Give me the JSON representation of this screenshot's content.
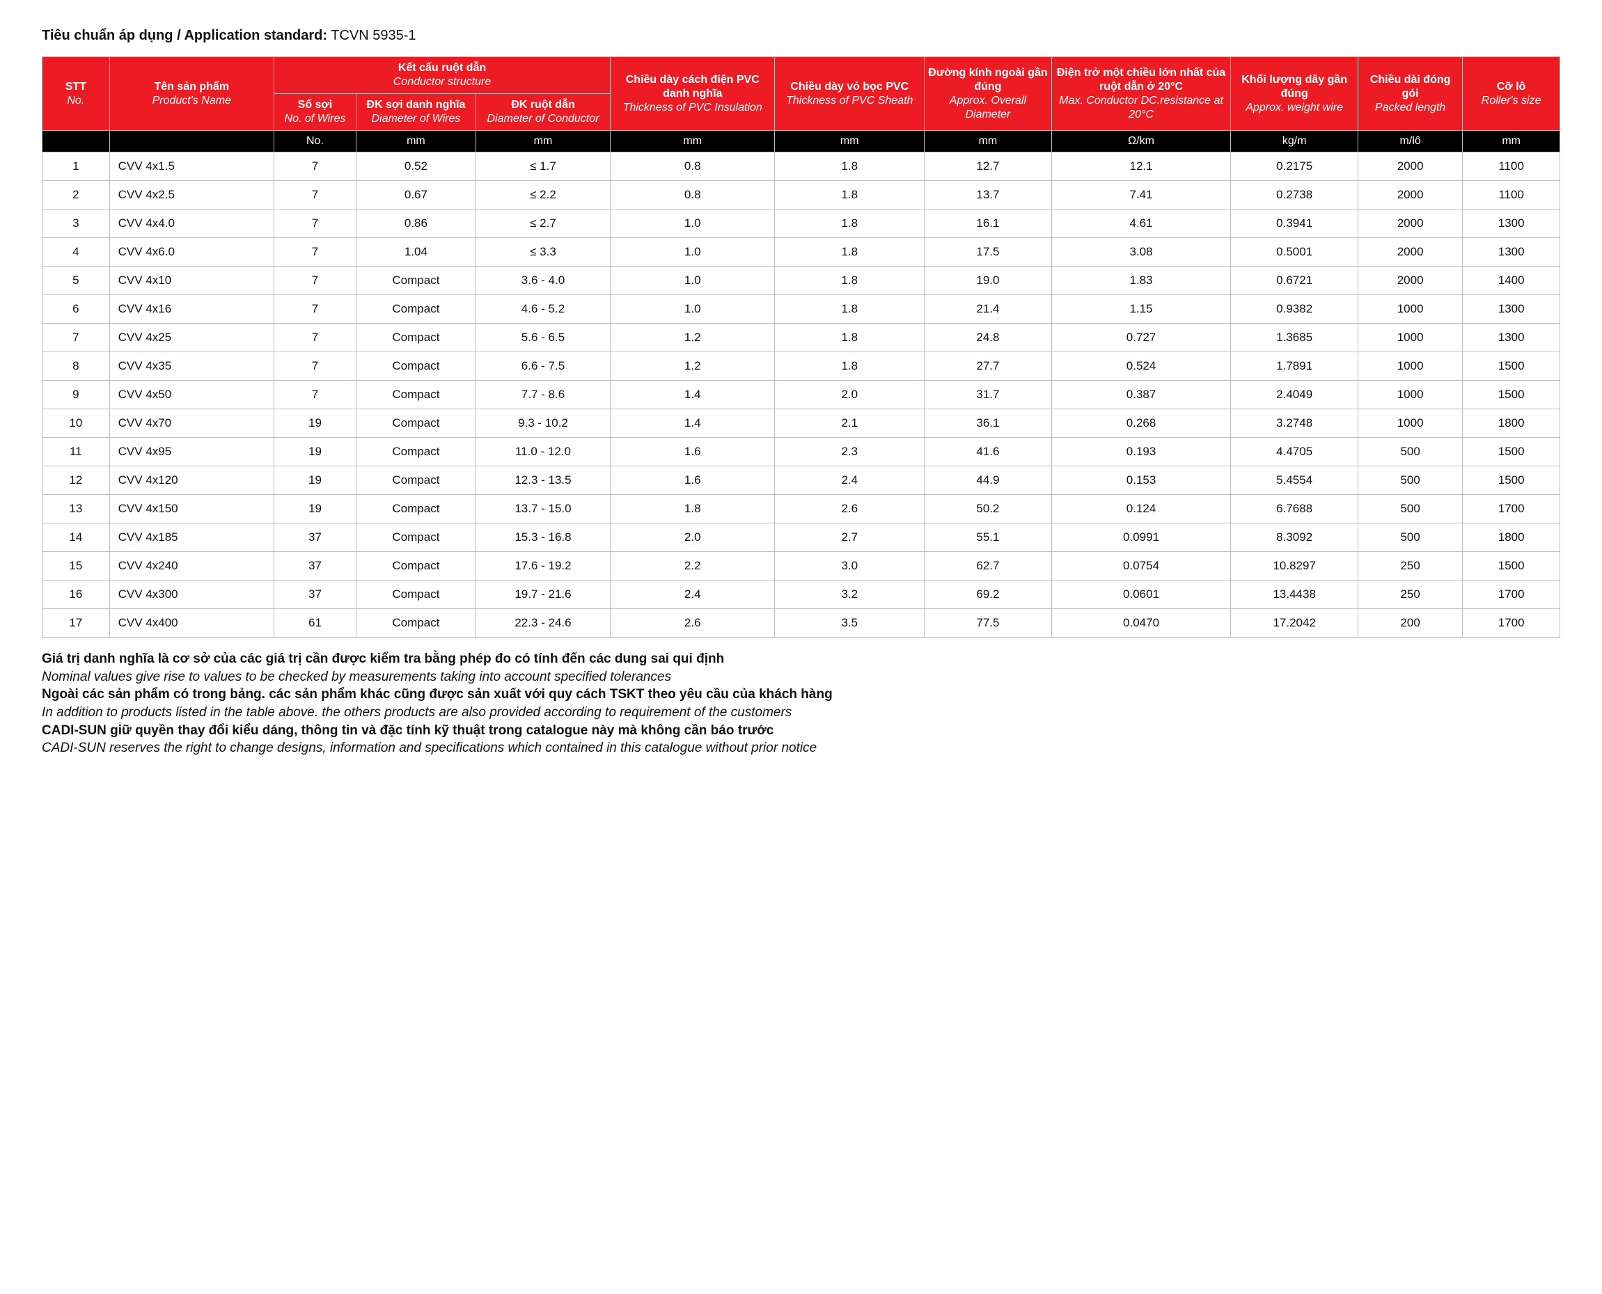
{
  "standard": {
    "label": "Tiêu chuẩn áp dụng / Application standard:",
    "value": "TCVN 5935-1"
  },
  "header": {
    "stt": {
      "vn": "STT",
      "en": "No."
    },
    "name": {
      "vn": "Tên sản phẩm",
      "en": "Product's Name"
    },
    "cond_group": {
      "vn": "Kết cấu ruột dẫn",
      "en": "Conductor structure"
    },
    "wires": {
      "vn": "Số sợi",
      "en": "No. of Wires"
    },
    "wire_dia": {
      "vn": "ĐK sợi danh nghĩa",
      "en": "Diameter of Wires"
    },
    "cond_dia": {
      "vn": "ĐK ruột dẫn",
      "en": "Diameter of Conductor"
    },
    "pvc_ins": {
      "vn": "Chiều dày cách điện PVC danh nghĩa",
      "en": "Thickness of PVC Insulation"
    },
    "sheath": {
      "vn": "Chiều dày vỏ bọc PVC",
      "en": "Thickness of PVC Sheath"
    },
    "od": {
      "vn": "Đường kính ngoài gần đúng",
      "en": "Approx. Overall Diameter"
    },
    "res": {
      "vn": "Điện trở một chiều lớn nhất của ruột dẫn ở 20°C",
      "en": "Max. Conductor DC.resistance at 20°C"
    },
    "weight": {
      "vn": "Khối lượng dây gần đúng",
      "en": "Approx. weight wire"
    },
    "length": {
      "vn": "Chiều dài đóng gói",
      "en": "Packed length"
    },
    "roller": {
      "vn": "Cỡ lô",
      "en": "Roller's size"
    }
  },
  "units": {
    "stt": "",
    "name": "",
    "wires": "No.",
    "wire_dia": "mm",
    "cond_dia": "mm",
    "pvc_ins": "mm",
    "sheath": "mm",
    "od": "mm",
    "res": "Ω/km",
    "weight": "kg/m",
    "length": "m/lô",
    "roller": "mm"
  },
  "rows": [
    {
      "no": "1",
      "name": "CVV 4x1.5",
      "wires": "7",
      "wdia": "0.52",
      "cdia": "≤ 1.7",
      "pvc": "0.8",
      "sheath": "1.8",
      "od": "12.7",
      "res": "12.1",
      "wt": "0.2175",
      "len": "2000",
      "rol": "1100"
    },
    {
      "no": "2",
      "name": "CVV 4x2.5",
      "wires": "7",
      "wdia": "0.67",
      "cdia": "≤ 2.2",
      "pvc": "0.8",
      "sheath": "1.8",
      "od": "13.7",
      "res": "7.41",
      "wt": "0.2738",
      "len": "2000",
      "rol": "1100"
    },
    {
      "no": "3",
      "name": "CVV 4x4.0",
      "wires": "7",
      "wdia": "0.86",
      "cdia": "≤ 2.7",
      "pvc": "1.0",
      "sheath": "1.8",
      "od": "16.1",
      "res": "4.61",
      "wt": "0.3941",
      "len": "2000",
      "rol": "1300"
    },
    {
      "no": "4",
      "name": "CVV 4x6.0",
      "wires": "7",
      "wdia": "1.04",
      "cdia": "≤ 3.3",
      "pvc": "1.0",
      "sheath": "1.8",
      "od": "17.5",
      "res": "3.08",
      "wt": "0.5001",
      "len": "2000",
      "rol": "1300"
    },
    {
      "no": "5",
      "name": "CVV 4x10",
      "wires": "7",
      "wdia": "Compact",
      "cdia": "3.6 - 4.0",
      "pvc": "1.0",
      "sheath": "1.8",
      "od": "19.0",
      "res": "1.83",
      "wt": "0.6721",
      "len": "2000",
      "rol": "1400"
    },
    {
      "no": "6",
      "name": "CVV 4x16",
      "wires": "7",
      "wdia": "Compact",
      "cdia": "4.6 - 5.2",
      "pvc": "1.0",
      "sheath": "1.8",
      "od": "21.4",
      "res": "1.15",
      "wt": "0.9382",
      "len": "1000",
      "rol": "1300"
    },
    {
      "no": "7",
      "name": "CVV 4x25",
      "wires": "7",
      "wdia": "Compact",
      "cdia": "5.6 - 6.5",
      "pvc": "1.2",
      "sheath": "1.8",
      "od": "24.8",
      "res": "0.727",
      "wt": "1.3685",
      "len": "1000",
      "rol": "1300"
    },
    {
      "no": "8",
      "name": "CVV 4x35",
      "wires": "7",
      "wdia": "Compact",
      "cdia": "6.6 - 7.5",
      "pvc": "1.2",
      "sheath": "1.8",
      "od": "27.7",
      "res": "0.524",
      "wt": "1.7891",
      "len": "1000",
      "rol": "1500"
    },
    {
      "no": "9",
      "name": "CVV 4x50",
      "wires": "7",
      "wdia": "Compact",
      "cdia": "7.7 - 8.6",
      "pvc": "1.4",
      "sheath": "2.0",
      "od": "31.7",
      "res": "0.387",
      "wt": "2.4049",
      "len": "1000",
      "rol": "1500"
    },
    {
      "no": "10",
      "name": "CVV 4x70",
      "wires": "19",
      "wdia": "Compact",
      "cdia": "9.3 - 10.2",
      "pvc": "1.4",
      "sheath": "2.1",
      "od": "36.1",
      "res": "0.268",
      "wt": "3.2748",
      "len": "1000",
      "rol": "1800"
    },
    {
      "no": "11",
      "name": "CVV 4x95",
      "wires": "19",
      "wdia": "Compact",
      "cdia": "11.0 - 12.0",
      "pvc": "1.6",
      "sheath": "2.3",
      "od": "41.6",
      "res": "0.193",
      "wt": "4.4705",
      "len": "500",
      "rol": "1500"
    },
    {
      "no": "12",
      "name": "CVV 4x120",
      "wires": "19",
      "wdia": "Compact",
      "cdia": "12.3 - 13.5",
      "pvc": "1.6",
      "sheath": "2.4",
      "od": "44.9",
      "res": "0.153",
      "wt": "5.4554",
      "len": "500",
      "rol": "1500"
    },
    {
      "no": "13",
      "name": "CVV 4x150",
      "wires": "19",
      "wdia": "Compact",
      "cdia": "13.7 - 15.0",
      "pvc": "1.8",
      "sheath": "2.6",
      "od": "50.2",
      "res": "0.124",
      "wt": "6.7688",
      "len": "500",
      "rol": "1700"
    },
    {
      "no": "14",
      "name": "CVV 4x185",
      "wires": "37",
      "wdia": "Compact",
      "cdia": "15.3 - 16.8",
      "pvc": "2.0",
      "sheath": "2.7",
      "od": "55.1",
      "res": "0.0991",
      "wt": "8.3092",
      "len": "500",
      "rol": "1800"
    },
    {
      "no": "15",
      "name": "CVV 4x240",
      "wires": "37",
      "wdia": "Compact",
      "cdia": "17.6 - 19.2",
      "pvc": "2.2",
      "sheath": "3.0",
      "od": "62.7",
      "res": "0.0754",
      "wt": "10.8297",
      "len": "250",
      "rol": "1500"
    },
    {
      "no": "16",
      "name": "CVV 4x300",
      "wires": "37",
      "wdia": "Compact",
      "cdia": "19.7 - 21.6",
      "pvc": "2.4",
      "sheath": "3.2",
      "od": "69.2",
      "res": "0.0601",
      "wt": "13.4438",
      "len": "250",
      "rol": "1700"
    },
    {
      "no": "17",
      "name": "CVV 4x400",
      "wires": "61",
      "wdia": "Compact",
      "cdia": "22.3 - 24.6",
      "pvc": "2.6",
      "sheath": "3.5",
      "od": "77.5",
      "res": "0.0470",
      "wt": "17.2042",
      "len": "200",
      "rol": "1700"
    }
  ],
  "notes": [
    {
      "vn": "Giá trị danh nghĩa là cơ sở của các giá trị cần được kiểm tra bằng phép đo có tính đến các dung sai qui định",
      "en": "Nominal values give rise to values to be checked by measurements taking into account specified tolerances"
    },
    {
      "vn": "Ngoài các sản phẩm có trong bảng. các sản phẩm khác cũng được sản xuất với quy cách TSKT theo yêu cầu của khách hàng",
      "en": "In addition to products listed in the table above. the others products are also provided according to requirement of the customers"
    },
    {
      "vn": "CADI-SUN giữ quyền thay đổi kiểu dáng, thông tin và đặc tính kỹ thuật trong catalogue này mà không cần báo trước",
      "en": "CADI-SUN reserves the right to change designs, information and specifications which contained in this catalogue without prior notice"
    }
  ]
}
